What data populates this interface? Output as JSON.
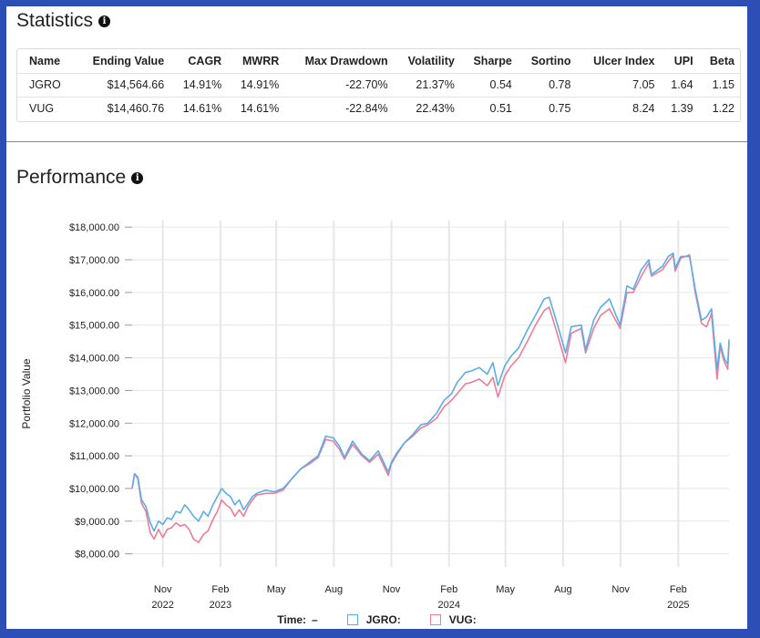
{
  "statistics": {
    "title": "Statistics",
    "columns": [
      "Name",
      "Ending Value",
      "CAGR",
      "MWRR",
      "Max Drawdown",
      "Volatility",
      "Sharpe",
      "Sortino",
      "Ulcer Index",
      "UPI",
      "Beta"
    ],
    "rows": [
      [
        "JGRO",
        "$14,564.66",
        "14.91%",
        "14.91%",
        "-22.70%",
        "21.37%",
        "0.54",
        "0.78",
        "7.05",
        "1.64",
        "1.15"
      ],
      [
        "VUG",
        "$14,460.76",
        "14.61%",
        "14.61%",
        "-22.84%",
        "22.43%",
        "0.51",
        "0.75",
        "8.24",
        "1.39",
        "1.22"
      ]
    ]
  },
  "performance": {
    "title": "Performance"
  },
  "legend": {
    "time_label": "Time:",
    "time_value": "–",
    "jgro_label": "JGRO:",
    "vug_label": "VUG:"
  },
  "chart_data": {
    "type": "line",
    "ylabel": "Portfolio Value",
    "ylim": [
      7600,
      18200
    ],
    "yticks": [
      "$8,000.00",
      "$9,000.00",
      "$10,000.00",
      "$11,000.00",
      "$12,000.00",
      "$13,000.00",
      "$14,000.00",
      "$15,000.00",
      "$16,000.00",
      "$17,000.00",
      "$18,000.00"
    ],
    "ytick_values": [
      8000,
      9000,
      10000,
      11000,
      12000,
      13000,
      14000,
      15000,
      16000,
      17000,
      18000
    ],
    "xticks": [
      {
        "date": "2022-11-01",
        "label": "Nov",
        "year": "2022"
      },
      {
        "date": "2023-02-01",
        "label": "Feb",
        "year": "2023"
      },
      {
        "date": "2023-05-01",
        "label": "May",
        "year": ""
      },
      {
        "date": "2023-08-01",
        "label": "Aug",
        "year": ""
      },
      {
        "date": "2023-11-01",
        "label": "Nov",
        "year": ""
      },
      {
        "date": "2024-02-01",
        "label": "Feb",
        "year": "2024"
      },
      {
        "date": "2024-05-01",
        "label": "May",
        "year": ""
      },
      {
        "date": "2024-08-01",
        "label": "Aug",
        "year": ""
      },
      {
        "date": "2024-11-01",
        "label": "Nov",
        "year": ""
      },
      {
        "date": "2025-02-01",
        "label": "Feb",
        "year": "2025"
      }
    ],
    "x_range": [
      "2022-09-13",
      "2025-04-23"
    ],
    "grid": true,
    "legend_position": "bottom",
    "series": [
      {
        "name": "JGRO",
        "color": "#5aaee6",
        "points": [
          [
            "2022-09-13",
            10000
          ],
          [
            "2022-09-17",
            10450
          ],
          [
            "2022-09-22",
            10350
          ],
          [
            "2022-09-28",
            9650
          ],
          [
            "2022-10-05",
            9450
          ],
          [
            "2022-10-12",
            8950
          ],
          [
            "2022-10-18",
            8700
          ],
          [
            "2022-10-25",
            9000
          ],
          [
            "2022-11-01",
            8900
          ],
          [
            "2022-11-08",
            9100
          ],
          [
            "2022-11-15",
            9050
          ],
          [
            "2022-11-22",
            9300
          ],
          [
            "2022-11-29",
            9250
          ],
          [
            "2022-12-06",
            9500
          ],
          [
            "2022-12-13",
            9350
          ],
          [
            "2022-12-20",
            9150
          ],
          [
            "2022-12-28",
            9000
          ],
          [
            "2023-01-05",
            9300
          ],
          [
            "2023-01-12",
            9150
          ],
          [
            "2023-01-20",
            9500
          ],
          [
            "2023-01-27",
            9750
          ],
          [
            "2023-02-03",
            10000
          ],
          [
            "2023-02-10",
            9850
          ],
          [
            "2023-02-17",
            9750
          ],
          [
            "2023-02-24",
            9500
          ],
          [
            "2023-03-03",
            9650
          ],
          [
            "2023-03-10",
            9350
          ],
          [
            "2023-03-17",
            9550
          ],
          [
            "2023-03-24",
            9750
          ],
          [
            "2023-03-31",
            9850
          ],
          [
            "2023-04-14",
            9950
          ],
          [
            "2023-04-28",
            9900
          ],
          [
            "2023-05-12",
            10000
          ],
          [
            "2023-05-26",
            10300
          ],
          [
            "2023-06-09",
            10600
          ],
          [
            "2023-06-23",
            10800
          ],
          [
            "2023-07-07",
            11000
          ],
          [
            "2023-07-19",
            11600
          ],
          [
            "2023-07-31",
            11550
          ],
          [
            "2023-08-10",
            11300
          ],
          [
            "2023-08-18",
            10950
          ],
          [
            "2023-08-31",
            11450
          ],
          [
            "2023-09-15",
            11050
          ],
          [
            "2023-09-27",
            10850
          ],
          [
            "2023-10-11",
            11150
          ],
          [
            "2023-10-27",
            10500
          ],
          [
            "2023-11-01",
            10800
          ],
          [
            "2023-11-10",
            11100
          ],
          [
            "2023-11-22",
            11400
          ],
          [
            "2023-12-05",
            11650
          ],
          [
            "2023-12-18",
            11950
          ],
          [
            "2023-12-29",
            12000
          ],
          [
            "2024-01-12",
            12300
          ],
          [
            "2024-01-24",
            12700
          ],
          [
            "2024-02-05",
            12900
          ],
          [
            "2024-02-14",
            13250
          ],
          [
            "2024-02-27",
            13550
          ],
          [
            "2024-03-08",
            13600
          ],
          [
            "2024-03-20",
            13700
          ],
          [
            "2024-04-02",
            13500
          ],
          [
            "2024-04-11",
            13850
          ],
          [
            "2024-04-19",
            13150
          ],
          [
            "2024-04-30",
            13750
          ],
          [
            "2024-05-10",
            14050
          ],
          [
            "2024-05-22",
            14300
          ],
          [
            "2024-06-05",
            14850
          ],
          [
            "2024-06-18",
            15300
          ],
          [
            "2024-07-02",
            15800
          ],
          [
            "2024-07-10",
            15850
          ],
          [
            "2024-07-24",
            14950
          ],
          [
            "2024-08-05",
            14150
          ],
          [
            "2024-08-14",
            14950
          ],
          [
            "2024-08-30",
            15000
          ],
          [
            "2024-09-06",
            14250
          ],
          [
            "2024-09-19",
            15150
          ],
          [
            "2024-09-30",
            15550
          ],
          [
            "2024-10-14",
            15800
          ],
          [
            "2024-10-31",
            15000
          ],
          [
            "2024-11-11",
            16200
          ],
          [
            "2024-11-21",
            16100
          ],
          [
            "2024-12-04",
            16700
          ],
          [
            "2024-12-16",
            17000
          ],
          [
            "2024-12-20",
            16550
          ],
          [
            "2025-01-07",
            16800
          ],
          [
            "2025-01-16",
            17100
          ],
          [
            "2025-01-24",
            17200
          ],
          [
            "2025-01-27",
            16750
          ],
          [
            "2025-02-05",
            17100
          ],
          [
            "2025-02-19",
            17100
          ],
          [
            "2025-02-28",
            16100
          ],
          [
            "2025-03-10",
            15150
          ],
          [
            "2025-03-18",
            15250
          ],
          [
            "2025-03-26",
            15500
          ],
          [
            "2025-04-04",
            13650
          ],
          [
            "2025-04-09",
            14450
          ],
          [
            "2025-04-15",
            14000
          ],
          [
            "2025-04-21",
            13800
          ],
          [
            "2025-04-23",
            14560
          ]
        ]
      },
      {
        "name": "VUG",
        "color": "#ee7c99",
        "points": [
          [
            "2022-09-13",
            10000
          ],
          [
            "2022-09-17",
            10450
          ],
          [
            "2022-09-22",
            10300
          ],
          [
            "2022-09-28",
            9550
          ],
          [
            "2022-10-05",
            9300
          ],
          [
            "2022-10-12",
            8650
          ],
          [
            "2022-10-18",
            8450
          ],
          [
            "2022-10-25",
            8750
          ],
          [
            "2022-11-01",
            8500
          ],
          [
            "2022-11-08",
            8750
          ],
          [
            "2022-11-15",
            8800
          ],
          [
            "2022-11-22",
            8950
          ],
          [
            "2022-11-29",
            8850
          ],
          [
            "2022-12-06",
            8900
          ],
          [
            "2022-12-13",
            8750
          ],
          [
            "2022-12-20",
            8450
          ],
          [
            "2022-12-28",
            8350
          ],
          [
            "2023-01-05",
            8600
          ],
          [
            "2023-01-12",
            8700
          ],
          [
            "2023-01-20",
            9050
          ],
          [
            "2023-01-27",
            9300
          ],
          [
            "2023-02-03",
            9650
          ],
          [
            "2023-02-10",
            9500
          ],
          [
            "2023-02-17",
            9400
          ],
          [
            "2023-02-24",
            9150
          ],
          [
            "2023-03-03",
            9350
          ],
          [
            "2023-03-10",
            9150
          ],
          [
            "2023-03-17",
            9450
          ],
          [
            "2023-03-24",
            9650
          ],
          [
            "2023-03-31",
            9800
          ],
          [
            "2023-04-14",
            9850
          ],
          [
            "2023-04-28",
            9850
          ],
          [
            "2023-05-12",
            9950
          ],
          [
            "2023-05-26",
            10300
          ],
          [
            "2023-06-09",
            10600
          ],
          [
            "2023-06-23",
            10750
          ],
          [
            "2023-07-07",
            10950
          ],
          [
            "2023-07-19",
            11500
          ],
          [
            "2023-07-31",
            11450
          ],
          [
            "2023-08-10",
            11200
          ],
          [
            "2023-08-18",
            10900
          ],
          [
            "2023-08-31",
            11350
          ],
          [
            "2023-09-15",
            11000
          ],
          [
            "2023-09-27",
            10800
          ],
          [
            "2023-10-11",
            11050
          ],
          [
            "2023-10-27",
            10400
          ],
          [
            "2023-11-01",
            10750
          ],
          [
            "2023-11-10",
            11050
          ],
          [
            "2023-11-22",
            11400
          ],
          [
            "2023-12-05",
            11600
          ],
          [
            "2023-12-18",
            11850
          ],
          [
            "2023-12-29",
            11950
          ],
          [
            "2024-01-12",
            12150
          ],
          [
            "2024-01-24",
            12500
          ],
          [
            "2024-02-05",
            12700
          ],
          [
            "2024-02-14",
            12900
          ],
          [
            "2024-02-27",
            13200
          ],
          [
            "2024-03-08",
            13250
          ],
          [
            "2024-03-20",
            13350
          ],
          [
            "2024-04-02",
            13150
          ],
          [
            "2024-04-11",
            13400
          ],
          [
            "2024-04-19",
            12800
          ],
          [
            "2024-04-30",
            13450
          ],
          [
            "2024-05-10",
            13750
          ],
          [
            "2024-05-22",
            14000
          ],
          [
            "2024-06-05",
            14500
          ],
          [
            "2024-06-18",
            15000
          ],
          [
            "2024-07-02",
            15450
          ],
          [
            "2024-07-10",
            15550
          ],
          [
            "2024-07-24",
            14650
          ],
          [
            "2024-08-05",
            13850
          ],
          [
            "2024-08-14",
            14750
          ],
          [
            "2024-08-30",
            14900
          ],
          [
            "2024-09-06",
            14150
          ],
          [
            "2024-09-19",
            14900
          ],
          [
            "2024-09-30",
            15300
          ],
          [
            "2024-10-14",
            15500
          ],
          [
            "2024-10-31",
            14900
          ],
          [
            "2024-11-11",
            16000
          ],
          [
            "2024-11-21",
            16000
          ],
          [
            "2024-12-04",
            16500
          ],
          [
            "2024-12-16",
            16900
          ],
          [
            "2024-12-20",
            16500
          ],
          [
            "2025-01-07",
            16700
          ],
          [
            "2025-01-16",
            16950
          ],
          [
            "2025-01-24",
            17150
          ],
          [
            "2025-01-27",
            16650
          ],
          [
            "2025-02-05",
            17050
          ],
          [
            "2025-02-19",
            17150
          ],
          [
            "2025-02-28",
            16000
          ],
          [
            "2025-03-10",
            15050
          ],
          [
            "2025-03-18",
            14950
          ],
          [
            "2025-03-26",
            15350
          ],
          [
            "2025-04-04",
            13350
          ],
          [
            "2025-04-09",
            14350
          ],
          [
            "2025-04-15",
            13900
          ],
          [
            "2025-04-21",
            13650
          ],
          [
            "2025-04-23",
            14460
          ]
        ]
      }
    ]
  }
}
